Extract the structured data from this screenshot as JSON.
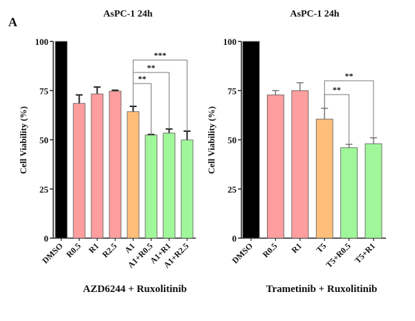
{
  "panel_label": "A",
  "chart_data": [
    {
      "type": "bar",
      "title": "AsPC-1 24h",
      "xlabel": "AZD6244 + Ruxolitinib",
      "ylabel": "Cell Viability (%)",
      "ylim": [
        0,
        100
      ],
      "yticks": [
        "0",
        "25",
        "50",
        "75",
        "100"
      ],
      "categories": [
        "DMSO",
        "R0.5",
        "R1",
        "R2.5",
        "A1",
        "A1+R0.5",
        "A1+R1",
        "A1+R2.5"
      ],
      "values": [
        100,
        68.5,
        73.3,
        74.7,
        64.3,
        52.4,
        53.4,
        49.9
      ],
      "error_upper": [
        0,
        4.3,
        3.5,
        0.5,
        2.7,
        0.3,
        2.1,
        4.5
      ],
      "colors": [
        "#000000",
        "#ff9e9e",
        "#ff9e9e",
        "#ff9e9e",
        "#ffbf7a",
        "#a0f79a",
        "#a0f79a",
        "#a0f79a"
      ],
      "grid": false,
      "significance": [
        {
          "from": "A1",
          "to": "A1+R0.5",
          "label": "**"
        },
        {
          "from": "A1",
          "to": "A1+R1",
          "label": "**"
        },
        {
          "from": "A1",
          "to": "A1+R2.5",
          "label": "***"
        }
      ]
    },
    {
      "type": "bar",
      "title": "AsPC-1 24h",
      "xlabel": "Trametinib + Ruxolitinib",
      "ylabel": "Cell Viability (%)",
      "ylim": [
        0,
        100
      ],
      "yticks": [
        "0",
        "25",
        "50",
        "75",
        "100"
      ],
      "categories": [
        "DMSO",
        "R0.5",
        "R1",
        "T5",
        "T5+R0.5",
        "T5+R1"
      ],
      "values": [
        100,
        72.8,
        75.0,
        60.5,
        46.0,
        48.0
      ],
      "error_upper": [
        0,
        2.2,
        4.0,
        5.5,
        1.7,
        3.0
      ],
      "colors": [
        "#000000",
        "#ff9e9e",
        "#ff9e9e",
        "#ffbf7a",
        "#a0f79a",
        "#a0f79a"
      ],
      "grid": false,
      "significance": [
        {
          "from": "T5",
          "to": "T5+R0.5",
          "label": "**"
        },
        {
          "from": "T5",
          "to": "T5+R1",
          "label": "**"
        }
      ]
    }
  ]
}
